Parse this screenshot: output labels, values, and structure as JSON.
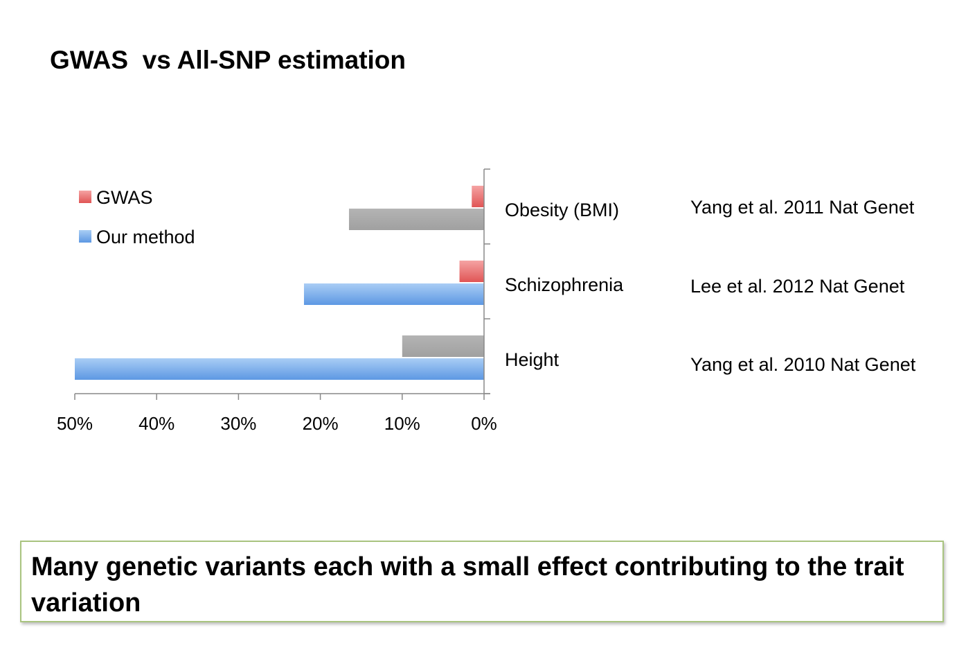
{
  "slide": {
    "title": "GWAS  vs All-SNP estimation",
    "conclusion": "Many genetic variants each with a small effect contributing to the trait variation"
  },
  "chart_data": {
    "type": "bar",
    "orientation": "horizontal",
    "x_reversed": true,
    "categories": [
      "Obesity (BMI)",
      "Schizophrenia",
      "Height"
    ],
    "references": [
      "Yang et al. 2011 Nat Genet",
      "Lee et al. 2012 Nat Genet",
      "Yang et al. 2010 Nat Genet"
    ],
    "series": [
      {
        "name": "GWAS",
        "values": [
          1.5,
          3,
          10
        ],
        "color": "#e86a6a",
        "segment_colors": [
          "#e86a6a",
          "#e86a6a",
          "#aaaaaa"
        ]
      },
      {
        "name": "Our method",
        "values": [
          16.5,
          22,
          50
        ],
        "color": "#6ba6ea",
        "segment_colors": [
          "#aaaaaa",
          "#6ba6ea",
          "#6ba6ea"
        ]
      }
    ],
    "xlim": [
      0,
      50
    ],
    "x_ticks": [
      50,
      40,
      30,
      20,
      10,
      0
    ],
    "x_tick_labels": [
      "50%",
      "40%",
      "30%",
      "20%",
      "10%",
      "0%"
    ],
    "legend": "top-left",
    "grid": false
  }
}
